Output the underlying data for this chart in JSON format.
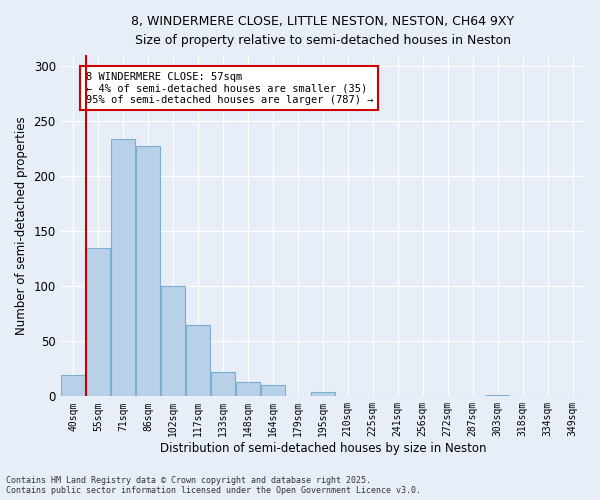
{
  "title_line1": "8, WINDERMERE CLOSE, LITTLE NESTON, NESTON, CH64 9XY",
  "title_line2": "Size of property relative to semi-detached houses in Neston",
  "xlabel": "Distribution of semi-detached houses by size in Neston",
  "ylabel": "Number of semi-detached properties",
  "categories": [
    "40sqm",
    "55sqm",
    "71sqm",
    "86sqm",
    "102sqm",
    "117sqm",
    "133sqm",
    "148sqm",
    "164sqm",
    "179sqm",
    "195sqm",
    "210sqm",
    "225sqm",
    "241sqm",
    "256sqm",
    "272sqm",
    "287sqm",
    "303sqm",
    "318sqm",
    "334sqm",
    "349sqm"
  ],
  "values": [
    19,
    135,
    234,
    227,
    100,
    65,
    22,
    13,
    10,
    0,
    4,
    0,
    0,
    0,
    0,
    0,
    0,
    1,
    0,
    0,
    0
  ],
  "bar_color": "#b8d0e8",
  "bar_edge_color": "#7aafd4",
  "vline_color": "#cc0000",
  "annotation_title": "8 WINDERMERE CLOSE: 57sqm",
  "annotation_line2": "← 4% of semi-detached houses are smaller (35)",
  "annotation_line3": "95% of semi-detached houses are larger (787) →",
  "annotation_box_color": "#cc0000",
  "ylim": [
    0,
    310
  ],
  "yticks": [
    0,
    50,
    100,
    150,
    200,
    250,
    300
  ],
  "footer_line1": "Contains HM Land Registry data © Crown copyright and database right 2025.",
  "footer_line2": "Contains public sector information licensed under the Open Government Licence v3.0.",
  "background_color": "#e8eef8",
  "grid_color": "#ffffff"
}
